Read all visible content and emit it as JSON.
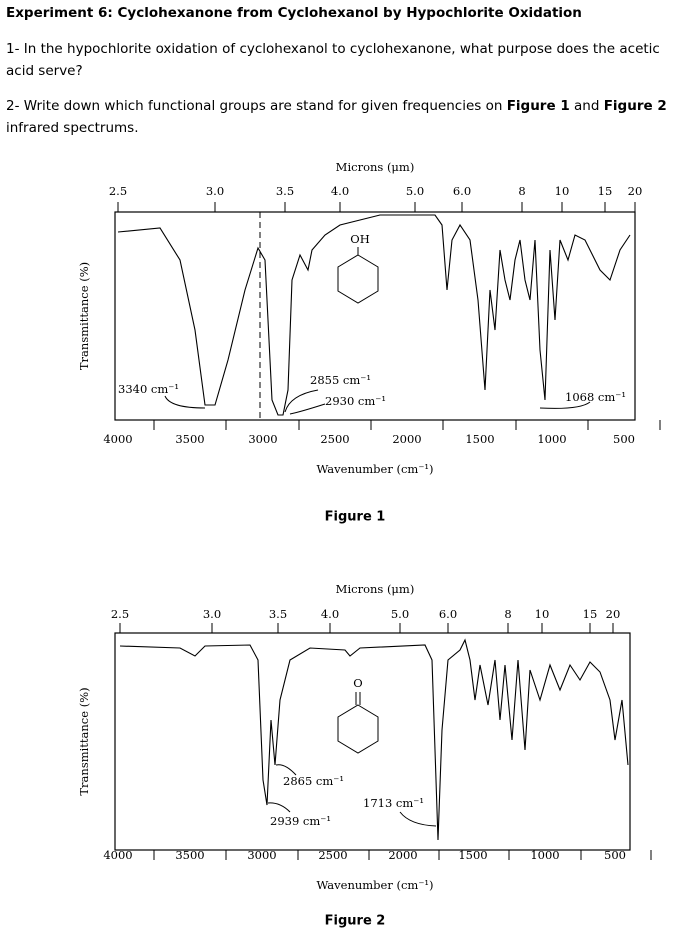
{
  "header": {
    "title": "Experiment 6: Cyclohexanone from Cyclohexanol by Hypochlorite Oxidation"
  },
  "questions": [
    {
      "parts": [
        "1- In the hypochlorite oxidation of cyclohexanol to cyclohexanone, what purpose does the acetic acid serve?"
      ]
    },
    {
      "parts": [
        "2- Write down which functional groups are stand for given frequencies on ",
        "Figure 1",
        " and ",
        "Figure 2",
        " infrared spectrums."
      ]
    }
  ],
  "figures": [
    {
      "top_axis_title": "Microns (μm)",
      "micron_labels": [
        "2.5",
        "3.0",
        "3.5",
        "4.0",
        "5.0",
        "6.0",
        "8",
        "10",
        "15",
        "20"
      ],
      "wavenumber_labels": [
        "4000",
        "3500",
        "3000",
        "2500",
        "2000",
        "1500",
        "1000",
        "500"
      ],
      "x_axis_title": "Wavenumber (cm⁻¹)",
      "y_axis_title": "Transmittance (%)",
      "molecule_label": "OH",
      "annotations": [
        "3340 cm⁻¹",
        "2855 cm⁻¹",
        "2930 cm⁻¹",
        "1068 cm⁻¹"
      ],
      "caption": "Figure 1"
    },
    {
      "top_axis_title": "Microns (μm)",
      "micron_labels": [
        "2.5",
        "3.0",
        "3.5",
        "4.0",
        "5.0",
        "6.0",
        "8",
        "10",
        "15",
        "20"
      ],
      "wavenumber_labels": [
        "4000",
        "3500",
        "3000",
        "2500",
        "2000",
        "1500",
        "1000",
        "500"
      ],
      "x_axis_title": "Wavenumber (cm⁻¹)",
      "y_axis_title": "Transmittance (%)",
      "molecule_label": "O",
      "annotations": [
        "2865 cm⁻¹",
        "2939 cm⁻¹",
        "1713 cm⁻¹"
      ],
      "caption": "Figure 2"
    }
  ]
}
